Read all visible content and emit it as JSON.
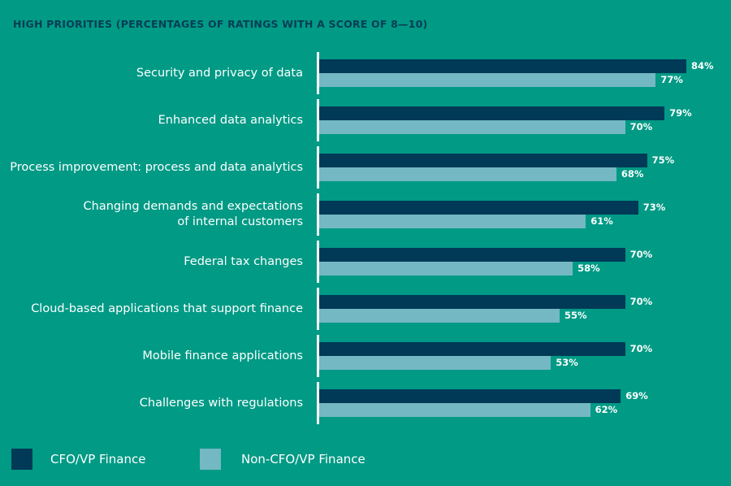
{
  "chart_data": {
    "type": "bar",
    "orientation": "horizontal",
    "title": "HIGH PRIORITIES (PERCENTAGES OF RATINGS WITH A SCORE OF 8—10)",
    "categories": [
      "Security and privacy of data",
      "Enhanced data analytics",
      "Process improvement: process and data analytics",
      "Changing demands and expectations\nof internal customers",
      "Federal tax changes",
      "Cloud-based applications that support finance",
      "Mobile finance applications",
      "Challenges with regulations"
    ],
    "series": [
      {
        "name": "CFO/VP Finance",
        "color": "#003a57",
        "values": [
          84,
          79,
          75,
          73,
          70,
          70,
          70,
          69
        ]
      },
      {
        "name": "Non-CFO/VP Finance",
        "color": "#74b8c3",
        "values": [
          77,
          70,
          68,
          61,
          58,
          55,
          53,
          62
        ]
      }
    ],
    "value_format": "{v}%",
    "xlim": [
      0,
      100
    ],
    "grid": false,
    "legend_position": "bottom-left",
    "background": "#009a85"
  }
}
